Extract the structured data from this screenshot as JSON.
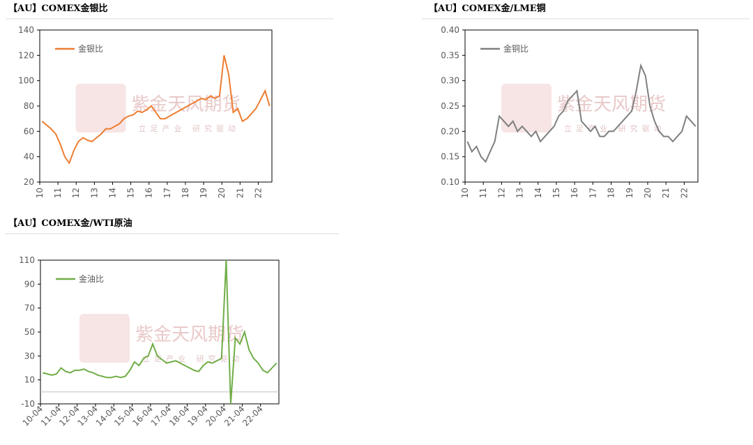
{
  "watermark": {
    "brand": "紫金天风期货",
    "slogan": "立足产业 研究驱动"
  },
  "chart_data": [
    {
      "type": "line",
      "title": "【AU】COMEX金银比",
      "categories": [
        "10",
        null,
        null,
        null,
        "11",
        null,
        null,
        null,
        "12",
        null,
        null,
        null,
        "13",
        null,
        null,
        null,
        "14",
        null,
        null,
        null,
        "15",
        null,
        null,
        null,
        "16",
        null,
        null,
        null,
        "17",
        null,
        null,
        null,
        "18",
        null,
        null,
        null,
        "19",
        null,
        null,
        null,
        "20",
        null,
        null,
        null,
        "21",
        null,
        null,
        null,
        "22",
        null,
        null
      ],
      "series": [
        {
          "name": "金银比",
          "color": "#ed7d31",
          "values": [
            68,
            65,
            62,
            58,
            50,
            40,
            35,
            45,
            52,
            55,
            53,
            52,
            55,
            58,
            62,
            62,
            64,
            66,
            70,
            72,
            73,
            76,
            75,
            77,
            80,
            75,
            70,
            70,
            72,
            74,
            76,
            78,
            80,
            82,
            84,
            86,
            85,
            88,
            86,
            88,
            120,
            105,
            75,
            78,
            68,
            70,
            74,
            78,
            85,
            92,
            80
          ]
        }
      ],
      "ylim": [
        20,
        140
      ],
      "yticks": [
        20,
        40,
        60,
        80,
        100,
        120,
        140
      ]
    },
    {
      "type": "line",
      "title": "【AU】COMEX金/LME铜",
      "categories": [
        "10",
        null,
        null,
        null,
        "11",
        null,
        null,
        null,
        "12",
        null,
        null,
        null,
        "13",
        null,
        null,
        null,
        "14",
        null,
        null,
        null,
        "15",
        null,
        null,
        null,
        "16",
        null,
        null,
        null,
        "17",
        null,
        null,
        null,
        "18",
        null,
        null,
        null,
        "19",
        null,
        null,
        null,
        "20",
        null,
        null,
        null,
        "21",
        null,
        null,
        null,
        "22",
        null,
        null
      ],
      "series": [
        {
          "name": "金铜比",
          "color": "#7f7f7f",
          "values": [
            0.18,
            0.16,
            0.17,
            0.15,
            0.14,
            0.16,
            0.18,
            0.23,
            0.22,
            0.21,
            0.22,
            0.2,
            0.21,
            0.2,
            0.19,
            0.2,
            0.18,
            0.19,
            0.2,
            0.21,
            0.23,
            0.24,
            0.26,
            0.27,
            0.28,
            0.22,
            0.21,
            0.2,
            0.21,
            0.19,
            0.19,
            0.2,
            0.2,
            0.21,
            0.22,
            0.23,
            0.24,
            0.28,
            0.33,
            0.31,
            0.25,
            0.22,
            0.2,
            0.19,
            0.19,
            0.18,
            0.19,
            0.2,
            0.23,
            0.22,
            0.21
          ]
        }
      ],
      "ylim": [
        0.1,
        0.4
      ],
      "yticks": [
        {
          "value": 0.1,
          "label": "0.10"
        },
        {
          "value": 0.15,
          "label": "0.15"
        },
        {
          "value": 0.2,
          "label": "0.20"
        },
        {
          "value": 0.25,
          "label": "0.25"
        },
        {
          "value": 0.3,
          "label": "0.30"
        },
        {
          "value": 0.35,
          "label": "0.35"
        },
        {
          "value": 0.4,
          "label": "0.40"
        }
      ]
    },
    {
      "type": "line",
      "title": "【AU】COMEX金/WTI原油",
      "categories": [
        "10-04",
        null,
        null,
        null,
        "11-04",
        null,
        null,
        null,
        "12-04",
        null,
        null,
        null,
        "13-04",
        null,
        null,
        null,
        "14-04",
        null,
        null,
        null,
        "15-04",
        null,
        null,
        null,
        "16-04",
        null,
        null,
        null,
        "17-04",
        null,
        null,
        null,
        "18-04",
        null,
        null,
        null,
        "19-04",
        null,
        null,
        null,
        "20-04",
        null,
        null,
        null,
        "21-04",
        null,
        null,
        null,
        "22-04",
        null,
        null,
        null
      ],
      "series": [
        {
          "name": "金油比",
          "color": "#70ad47",
          "values": [
            16,
            15,
            14,
            15,
            20,
            17,
            16,
            18,
            18,
            19,
            17,
            16,
            14,
            13,
            12,
            12,
            13,
            12,
            13,
            18,
            25,
            22,
            28,
            30,
            40,
            30,
            27,
            24,
            25,
            26,
            24,
            22,
            20,
            18,
            17,
            22,
            25,
            24,
            26,
            28,
            110,
            -10,
            45,
            40,
            50,
            35,
            28,
            24,
            18,
            16,
            20,
            24
          ]
        }
      ],
      "ylim": [
        -10,
        110
      ],
      "yticks": [
        -10,
        10,
        30,
        50,
        70,
        90,
        110
      ]
    }
  ]
}
